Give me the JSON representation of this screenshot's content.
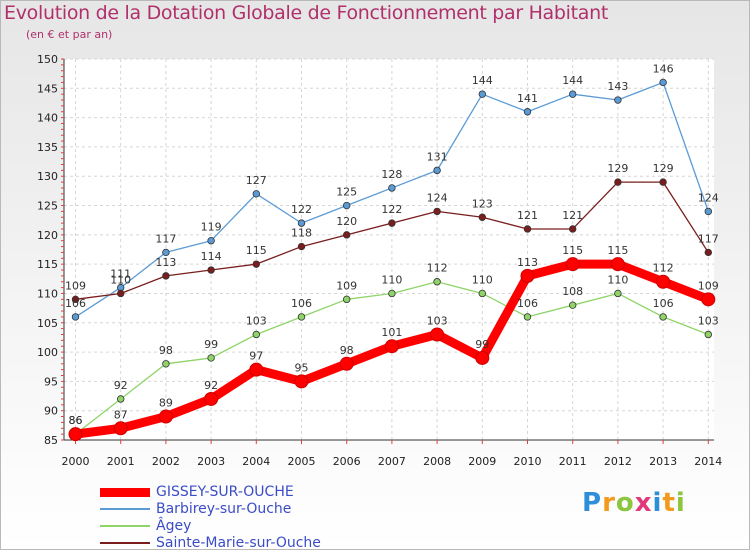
{
  "title": "Evolution de la Dotation Globale de Fonctionnement par Habitant",
  "subtitle": "(en € et par an)",
  "brand": {
    "p": "P",
    "r": "r",
    "o": "o",
    "x": "x",
    "i1": "i",
    "t": "t",
    "i2": "i"
  },
  "colors": {
    "gissey": "#ff0000",
    "barbirey": "#5b9bd5",
    "agey": "#8fd468",
    "sainte": "#7a1d1d"
  },
  "chart_data": {
    "type": "line",
    "title": "Evolution de la Dotation Globale de Fonctionnement par Habitant",
    "subtitle": "(en € et par an)",
    "xlabel": "",
    "ylabel": "",
    "ylim": [
      85,
      150
    ],
    "yticks": [
      85,
      90,
      95,
      100,
      105,
      110,
      115,
      120,
      125,
      130,
      135,
      140,
      145,
      150
    ],
    "categories": [
      "2000",
      "2001",
      "2002",
      "2003",
      "2004",
      "2005",
      "2006",
      "2007",
      "2008",
      "2009",
      "2010",
      "2011",
      "2012",
      "2013",
      "2014"
    ],
    "series": [
      {
        "key": "gissey",
        "name": "GISSEY-SUR-OUCHE",
        "values": [
          86,
          87,
          89,
          92,
          97,
          95,
          98,
          101,
          103,
          99,
          113,
          115,
          115,
          112,
          109
        ]
      },
      {
        "key": "barbirey",
        "name": "Barbirey-sur-Ouche",
        "values": [
          106,
          111,
          117,
          119,
          127,
          122,
          125,
          128,
          131,
          144,
          141,
          144,
          143,
          146,
          124
        ]
      },
      {
        "key": "agey",
        "name": "Âgey",
        "values": [
          86,
          92,
          98,
          99,
          103,
          106,
          109,
          110,
          112,
          110,
          106,
          108,
          110,
          106,
          103
        ]
      },
      {
        "key": "sainte",
        "name": "Sainte-Marie-sur-Ouche",
        "values": [
          109,
          110,
          113,
          114,
          115,
          118,
          120,
          122,
          124,
          123,
          121,
          121,
          129,
          129,
          117
        ]
      }
    ],
    "grid": true,
    "legend": "bottom-left"
  }
}
